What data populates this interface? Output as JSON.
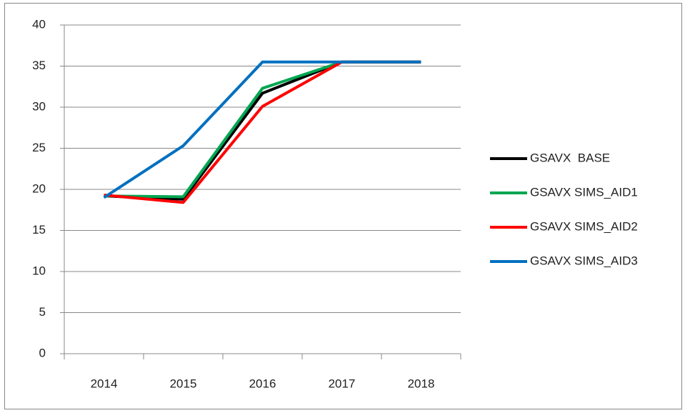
{
  "chart_data": {
    "type": "line",
    "categories": [
      "2014",
      "2015",
      "2016",
      "2017",
      "2018"
    ],
    "series": [
      {
        "name": "GSAVX  BASE",
        "color": "#000000",
        "values": [
          19.2,
          18.8,
          31.7,
          35.5,
          35.5
        ]
      },
      {
        "name": "GSAVX SIMS_AID1",
        "color": "#00a651",
        "values": [
          19.2,
          19.1,
          32.3,
          35.5,
          35.5
        ]
      },
      {
        "name": "GSAVX SIMS_AID2",
        "color": "#ff0000",
        "values": [
          19.3,
          18.4,
          30.1,
          35.5,
          35.5
        ]
      },
      {
        "name": "GSAVX SIMS_AID3",
        "color": "#0070c0",
        "values": [
          19.0,
          25.3,
          35.5,
          35.5,
          35.5
        ]
      }
    ],
    "ylim": [
      0,
      40
    ],
    "yticks": [
      0,
      5,
      10,
      15,
      20,
      25,
      30,
      35,
      40
    ],
    "grid": true,
    "legend": "right"
  }
}
